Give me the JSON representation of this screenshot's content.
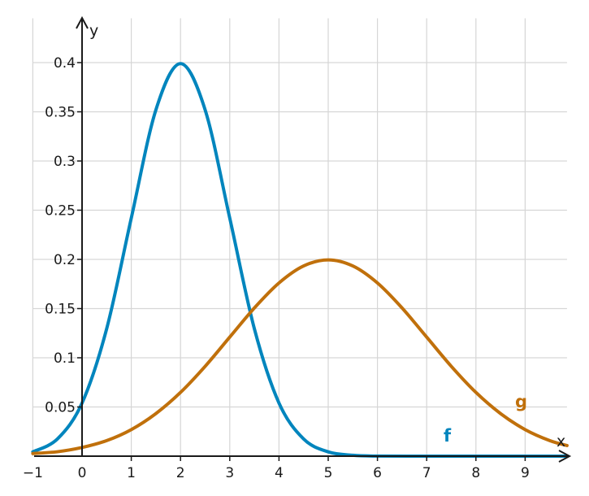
{
  "chart_data": {
    "type": "line",
    "title": "",
    "xlabel": "x",
    "ylabel": "y",
    "xlim": [
      -1,
      9.85
    ],
    "ylim": [
      0,
      0.445
    ],
    "grid": true,
    "x_ticks": [
      -1,
      0,
      1,
      2,
      3,
      4,
      5,
      6,
      7,
      8,
      9
    ],
    "x_tick_labels": [
      "−1",
      "0",
      "1",
      "2",
      "3",
      "4",
      "5",
      "6",
      "7",
      "8",
      "9"
    ],
    "y_ticks": [
      0.05,
      0.1,
      0.15,
      0.2,
      0.25,
      0.3,
      0.35,
      0.4
    ],
    "y_tick_labels": [
      "0.05",
      "0.1",
      "0.15",
      "0.2",
      "0.25",
      "0.3",
      "0.35",
      "0.4"
    ],
    "series": [
      {
        "name": "f",
        "color": "#0085bd",
        "x": [
          -1.0,
          -0.5,
          0.0,
          0.5,
          1.0,
          1.5,
          2.0,
          2.5,
          3.0,
          3.5,
          4.0,
          4.5,
          5.0,
          5.5,
          6.0,
          7.0,
          8.0,
          9.0,
          9.85
        ],
        "y": [
          0.0044,
          0.0175,
          0.054,
          0.1295,
          0.242,
          0.352,
          0.399,
          0.352,
          0.242,
          0.1295,
          0.054,
          0.0175,
          0.0044,
          0.0009,
          0.0001,
          0.0,
          0.0,
          0.0,
          0.0
        ]
      },
      {
        "name": "g",
        "color": "#c0700b",
        "x": [
          -1.0,
          -0.5,
          0.0,
          0.5,
          1.0,
          1.5,
          2.0,
          2.5,
          3.0,
          3.5,
          4.0,
          4.5,
          5.0,
          5.5,
          6.0,
          6.5,
          7.0,
          7.5,
          8.0,
          8.5,
          9.0,
          9.5,
          9.85
        ],
        "y": [
          0.0027,
          0.0045,
          0.0088,
          0.0158,
          0.027,
          0.0433,
          0.0648,
          0.0913,
          0.121,
          0.1506,
          0.176,
          0.1933,
          0.1995,
          0.1933,
          0.176,
          0.1506,
          0.121,
          0.0913,
          0.0648,
          0.0433,
          0.027,
          0.0158,
          0.0108
        ]
      }
    ]
  }
}
